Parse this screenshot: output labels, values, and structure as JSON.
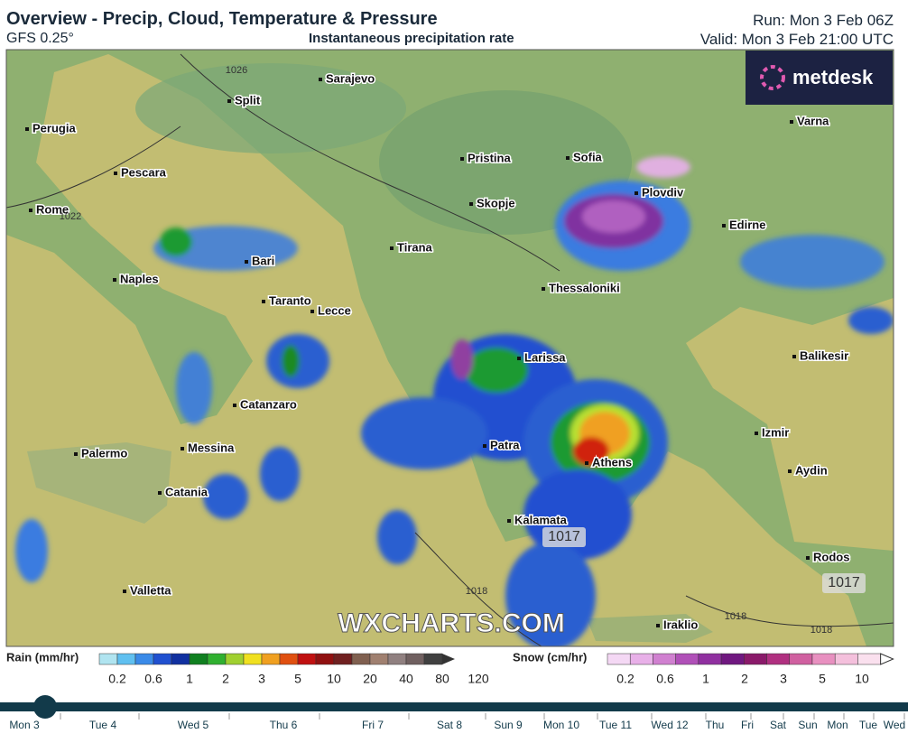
{
  "header": {
    "title": "Overview - Precip, Cloud, Temperature & Pressure",
    "model": "GFS 0.25°",
    "field": "Instantaneous precipitation rate",
    "run": "Run: Mon 3 Feb 06Z",
    "valid": "Valid: Mon 3 Feb 21:00 UTC"
  },
  "logo": "metdesk",
  "watermark": "WXCHARTS.COM",
  "cities": [
    "Sarajevo",
    "Split",
    "Perugia",
    "Pescara",
    "Rome",
    "Bari",
    "Naples",
    "Taranto",
    "Lecce",
    "Catanzaro",
    "Palermo",
    "Messina",
    "Catania",
    "Valletta",
    "Tirana",
    "Skopje",
    "Pristina",
    "Sofia",
    "Plovdiv",
    "Varna",
    "Edirne",
    "Thessaloniki",
    "Larissa",
    "Patra",
    "Athens",
    "Kalamata",
    "Balikesir",
    "Izmir",
    "Aydin",
    "Rodos",
    "Iraklio"
  ],
  "pressure_labels": [
    1017,
    1017,
    1018,
    1018,
    1018,
    1026,
    1022
  ],
  "legend": {
    "rain_title": "Rain (mm/hr)",
    "rain_ticks": [
      0.2,
      0.6,
      1,
      2,
      3,
      5,
      10,
      20,
      40,
      80,
      120
    ],
    "snow_title": "Snow (cm/hr)",
    "snow_ticks": [
      0.2,
      0.6,
      1,
      2,
      3,
      5,
      10
    ]
  },
  "timeline": [
    "Mon 3",
    "Tue 4",
    "Wed 5",
    "Thu 6",
    "Fri 7",
    "Sat 8",
    "Sun 9",
    "Mon 10",
    "Tue 11",
    "Wed 12",
    "Thu",
    "Fri",
    "Sat",
    "Sun",
    "Mon",
    "Tue",
    "Wed"
  ]
}
